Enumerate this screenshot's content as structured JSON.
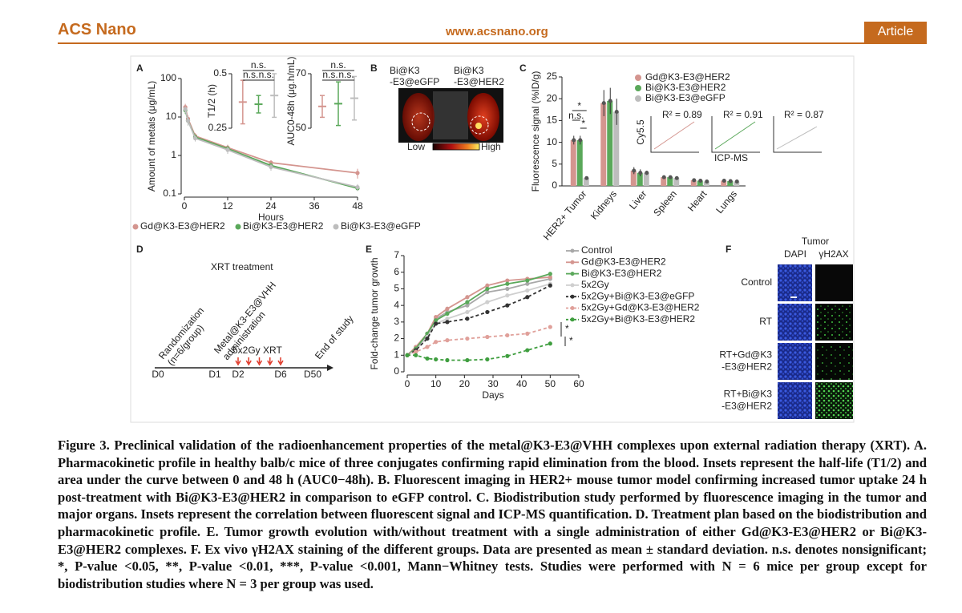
{
  "header": {
    "journal": "ACS Nano",
    "url": "www.acsnano.org",
    "section": "Article"
  },
  "panel_labels": [
    "A",
    "B",
    "C",
    "D",
    "E",
    "F"
  ],
  "chart_data": [
    {
      "type": "line",
      "log_y": true,
      "y_label": "Amount of metals (μg/mL)",
      "x_label": "Hours",
      "x": [
        0.25,
        1,
        3,
        12,
        24,
        48
      ],
      "xlim": [
        0,
        48
      ],
      "xticks": [
        0,
        12,
        24,
        36,
        48
      ],
      "ylim": [
        0.1,
        100
      ],
      "yticks": [
        0.1,
        1,
        10,
        100
      ],
      "series": [
        {
          "name": "Gd@K3-E3@HER2",
          "color": "#d4958f",
          "values": [
            18,
            9,
            3.2,
            1.6,
            0.65,
            0.35
          ],
          "errors": [
            4,
            2,
            0.6,
            0.3,
            0.1,
            0.1
          ]
        },
        {
          "name": "Bi@K3-E3@HER2",
          "color": "#5aa85a",
          "values": [
            15,
            8,
            3,
            1.5,
            0.55,
            0.14
          ],
          "errors": [
            3,
            2,
            0.5,
            0.3,
            0.1,
            0.02
          ]
        },
        {
          "name": "Bi@K3-E3@eGFP",
          "color": "#bdbdbd",
          "values": [
            16,
            8,
            2.8,
            1.4,
            0.5,
            0.15
          ],
          "errors": [
            3,
            2,
            0.5,
            0.3,
            0.1,
            0.03
          ]
        }
      ]
    },
    {
      "type": "errorbar",
      "y_label": "T1/2 (h)",
      "ylim": [
        0.25,
        0.5
      ],
      "yticks": [
        0.25,
        0.5
      ],
      "annotations": [
        "n.s.",
        "n.s.",
        "n.s."
      ],
      "series": [
        {
          "color": "#d4958f",
          "values": [
            0.37
          ],
          "errors": [
            0.1
          ]
        },
        {
          "color": "#5aa85a",
          "values": [
            0.36
          ],
          "errors": [
            0.04
          ]
        },
        {
          "color": "#bdbdbd",
          "values": [
            0.4
          ],
          "errors": [
            0.1
          ]
        }
      ]
    },
    {
      "type": "errorbar",
      "y_label": "AUC0-48h (μg.h/mL)",
      "ylim": [
        50,
        70
      ],
      "yticks": [
        50,
        70
      ],
      "annotations": [
        "n.s.",
        "n.s.",
        "n.s."
      ],
      "series": [
        {
          "color": "#d4958f",
          "values": [
            58
          ],
          "errors": [
            4
          ]
        },
        {
          "color": "#5aa85a",
          "values": [
            59
          ],
          "errors": [
            8
          ]
        },
        {
          "color": "#bdbdbd",
          "values": [
            61
          ],
          "errors": [
            8
          ]
        }
      ]
    },
    {
      "type": "bar",
      "y_label": "Fluorescence signal (%ID/g)",
      "categories": [
        "HER2+ Tumor",
        "Kidneys",
        "Liver",
        "Spleen",
        "Heart",
        "Lungs"
      ],
      "ylim": [
        0,
        25
      ],
      "yticks": [
        0,
        5,
        10,
        15,
        20,
        25
      ],
      "annotations": [
        "n.s.",
        "*",
        "*"
      ],
      "series": [
        {
          "name": "Gd@K3-E3@HER2",
          "color": "#d4958f",
          "values": [
            10.5,
            19,
            3.5,
            2,
            1.3,
            1.2
          ],
          "errors": [
            1,
            3,
            0.8,
            0.3,
            0.2,
            0.3
          ]
        },
        {
          "name": "Bi@K3-E3@HER2",
          "color": "#5aa85a",
          "values": [
            10.5,
            19.5,
            3,
            2,
            1.2,
            1.1
          ],
          "errors": [
            1,
            3,
            0.8,
            0.3,
            0.2,
            0.3
          ]
        },
        {
          "name": "Bi@K3-E3@eGFP",
          "color": "#bdbdbd",
          "values": [
            1.8,
            17,
            3,
            1.8,
            1,
            1
          ],
          "errors": [
            0.3,
            3,
            0.5,
            0.3,
            0.2,
            0.2
          ]
        }
      ]
    },
    {
      "type": "line",
      "log_y": false,
      "y_label": "Fold-change tumor growth",
      "x_label": "Days",
      "x": [
        0,
        3,
        7,
        10,
        14,
        21,
        28,
        35,
        42,
        50
      ],
      "xlim": [
        0,
        60
      ],
      "xticks": [
        0,
        10,
        20,
        30,
        40,
        50,
        60
      ],
      "ylim": [
        0,
        7
      ],
      "yticks": [
        0,
        1,
        2,
        3,
        4,
        5,
        6,
        7
      ],
      "annotations": [
        "*",
        "*"
      ],
      "series": [
        {
          "name": "Control",
          "color": "#a8a8a8",
          "dash": false,
          "values": [
            1,
            1.4,
            2.2,
            3.2,
            3.6,
            4.0,
            4.8,
            5.0,
            5.3,
            5.6
          ]
        },
        {
          "name": "Gd@K3-E3@HER2",
          "color": "#d4958f",
          "dash": false,
          "values": [
            1,
            1.5,
            2.3,
            3.3,
            3.8,
            4.5,
            5.2,
            5.5,
            5.6,
            5.7
          ]
        },
        {
          "name": "Bi@K3-E3@HER2",
          "color": "#5aa85a",
          "dash": false,
          "values": [
            1,
            1.4,
            2.3,
            3.1,
            3.5,
            4.2,
            5.0,
            5.3,
            5.5,
            5.9
          ]
        },
        {
          "name": "5x2Gy",
          "color": "#cfcfcf",
          "dash": false,
          "values": [
            1,
            1.3,
            2.1,
            2.9,
            3.2,
            3.6,
            4.2,
            4.6,
            4.9,
            5.3
          ]
        },
        {
          "name": "5x2Gy+Bi@K3-E3@eGFP",
          "color": "#333333",
          "dash": true,
          "values": [
            1,
            1.3,
            2.0,
            2.9,
            3.0,
            3.2,
            3.6,
            4.0,
            4.5,
            5.2
          ]
        },
        {
          "name": "5x2Gy+Gd@K3-E3@HER2",
          "color": "#e0a09a",
          "dash": true,
          "values": [
            1,
            1.2,
            1.5,
            1.8,
            1.9,
            2.0,
            2.1,
            2.2,
            2.3,
            2.7
          ]
        },
        {
          "name": "5x2Gy+Bi@K3-E3@HER2",
          "color": "#3f9e3f",
          "dash": true,
          "values": [
            1,
            1.0,
            0.8,
            0.75,
            0.7,
            0.7,
            0.75,
            0.95,
            1.3,
            1.7
          ]
        }
      ]
    }
  ],
  "panel_b": {
    "mice": [
      [
        "Bi@K3",
        "-E3@eGFP"
      ],
      [
        "Bi@K3",
        "-E3@HER2"
      ]
    ],
    "scale_low": "Low",
    "scale_high": "High"
  },
  "panel_c_insets": {
    "correlations": [
      "R² = 0.89",
      "R² = 0.91",
      "R² = 0.87"
    ],
    "y_label": "Cy5.5",
    "x_label": "ICP-MS"
  },
  "panel_d": {
    "title": "XRT treatment",
    "days": [
      "D0",
      "D1",
      "D2",
      "D6",
      "D50"
    ],
    "events": [
      [
        "Randomization",
        "(n=6/group)"
      ],
      [
        "Metal@K3-E3@VHH",
        "administration"
      ],
      [
        "End of study"
      ]
    ],
    "treatment": "5x2Gy XRT"
  },
  "panel_f": {
    "header": "Tumor",
    "columns": [
      "DAPI",
      "γH2AX"
    ],
    "rows": [
      [
        "Control"
      ],
      [
        "RT"
      ],
      [
        "RT+Gd@K3",
        "-E3@HER2"
      ],
      [
        "RT+Bi@K3",
        "-E3@HER2"
      ]
    ]
  },
  "caption": "Figure 3. Preclinical validation of the radioenhancement properties of the metal@K3-E3@VHH complexes upon external radiation therapy (XRT). A. Pharmacokinetic profile in healthy balb/c mice of three conjugates confirming rapid elimination from the blood. Insets represent the half-life (T1/2) and area under the curve between 0 and 48 h (AUC0−48h). B. Fluorescent imaging in HER2+ mouse tumor model confirming increased tumor uptake 24 h post-treatment with Bi@K3-E3@HER2 in comparison to eGFP control. C. Biodistribution study performed by fluorescence imaging in the tumor and major organs. Insets represent the correlation between fluorescent signal and ICP-MS quantification. D. Treatment plan based on the biodistribution and pharmacokinetic profile. E. Tumor growth evolution with/without treatment with a single administration of either Gd@K3-E3@HER2 or Bi@K3-E3@HER2 complexes. F. Ex vivo γH2AX staining of the different groups. Data are presented as mean ± standard deviation. n.s. denotes nonsignificant; *, P-value <0.05, **, P-value <0.01, ***, P-value <0.001, Mann−Whitney tests. Studies were performed with N = 6 mice per group except for biodistribution studies where N = 3 per group was used."
}
